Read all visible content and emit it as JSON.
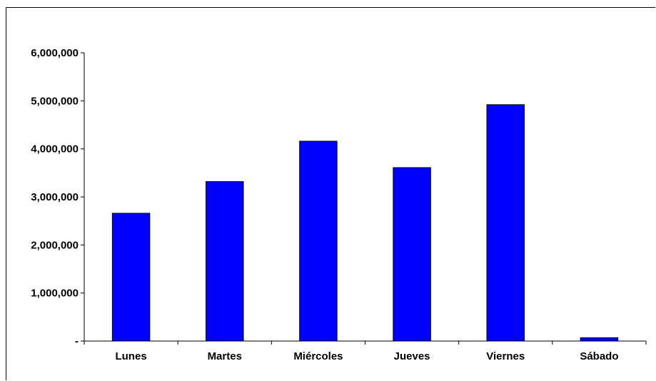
{
  "chart_data": {
    "type": "bar",
    "categories": [
      "Lunes",
      "Martes",
      "Miércoles",
      "Jueves",
      "Viernes",
      "Sábado"
    ],
    "values": [
      2660000,
      3320000,
      4160000,
      3610000,
      4920000,
      70000
    ],
    "ylim": [
      0,
      6000000
    ],
    "yticks": [
      0,
      1000000,
      2000000,
      3000000,
      4000000,
      5000000,
      6000000
    ],
    "ytick_labels": [
      "-",
      "1,000,000",
      "2,000,000",
      "3,000,000",
      "4,000,000",
      "5,000,000",
      "6,000,000"
    ],
    "grid": false,
    "legend": "none",
    "bar_color": "#0000FF",
    "bar_edge_color": "#000000"
  }
}
